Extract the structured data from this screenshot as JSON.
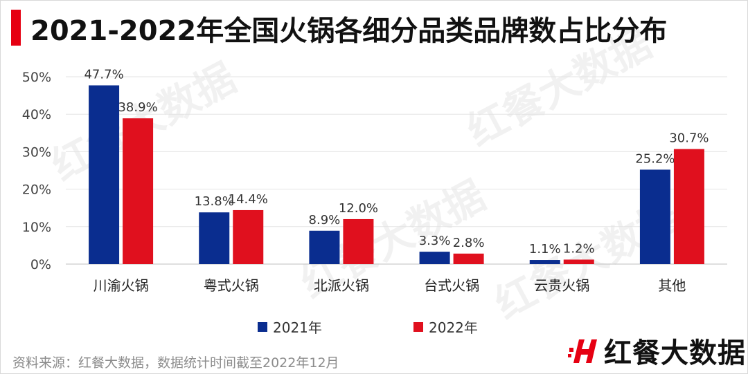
{
  "title": "2021-2022年全国火锅各细分品类品牌数占比分布",
  "source": "资料来源：红餐大数据，数据统计时间截至2022年12月",
  "brand": {
    "name": "红餐大数据",
    "logo_icon": "hongcan-h-logo-icon"
  },
  "watermark": "红餐大数据",
  "colors": {
    "accent": "#e60012",
    "s2021": "#0a2d8f",
    "s2022": "#e0101e"
  },
  "chart_data": {
    "type": "bar",
    "categories": [
      "川渝火锅",
      "粤式火锅",
      "北派火锅",
      "台式火锅",
      "云贵火锅",
      "其他"
    ],
    "series": [
      {
        "name": "2021年",
        "values": [
          47.7,
          13.8,
          8.9,
          3.3,
          1.1,
          25.2
        ],
        "labels": [
          "47.7%",
          "13.8%",
          "8.9%",
          "3.3%",
          "1.1%",
          "25.2%"
        ]
      },
      {
        "name": "2022年",
        "values": [
          38.9,
          14.4,
          12.0,
          2.8,
          1.2,
          30.7
        ],
        "labels": [
          "38.9%",
          "14.4%",
          "12.0%",
          "2.8%",
          "1.2%",
          "30.7%"
        ]
      }
    ],
    "ylim": [
      0,
      50
    ],
    "yticks": [
      0,
      10,
      20,
      30,
      40,
      50
    ],
    "ytick_labels": [
      "0%",
      "10%",
      "20%",
      "30%",
      "40%",
      "50%"
    ],
    "grid": true,
    "legend": "bottom"
  }
}
